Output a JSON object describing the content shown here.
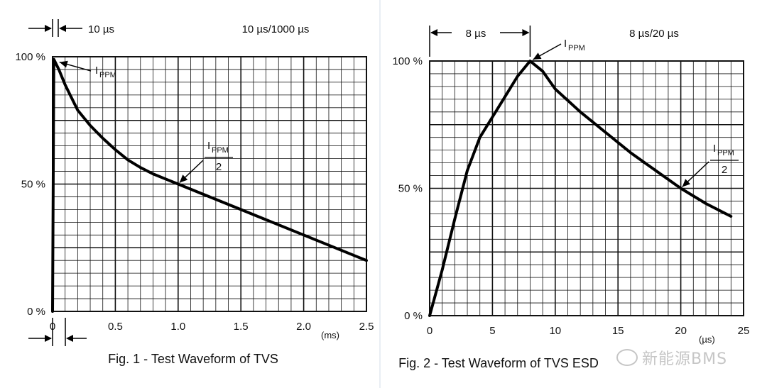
{
  "colors": {
    "grid": "#111111",
    "curve": "#000000",
    "background": "#ffffff"
  },
  "chart_data": [
    {
      "type": "line",
      "title": "Fig. 1 - Test Waveform of TVS",
      "xlabel": "(ms)",
      "ylabel": "",
      "xlim": [
        0,
        2.5
      ],
      "ylim": [
        0,
        100
      ],
      "x_ticks": [
        {
          "v": 0,
          "label": "0"
        },
        {
          "v": 0.5,
          "label": "0.5"
        },
        {
          "v": 1,
          "label": "1.0"
        },
        {
          "v": 1.5,
          "label": "1.5"
        },
        {
          "v": 2,
          "label": "2.0"
        },
        {
          "v": 2.5,
          "label": "2.5"
        }
      ],
      "y_ticks": [
        {
          "v": 0,
          "label": "0 %"
        },
        {
          "v": 50,
          "label": "50 %"
        },
        {
          "v": 100,
          "label": "100 %"
        }
      ],
      "x_minor": 0.1,
      "y_minor": 5,
      "grid": true,
      "series": [
        {
          "name": "10 µs/1000 µs waveform",
          "x": [
            0,
            0.01,
            0.05,
            0.1,
            0.15,
            0.2,
            0.3,
            0.4,
            0.5,
            0.6,
            0.7,
            0.8,
            0.9,
            1.0,
            1.2,
            1.5,
            2.0,
            2.5
          ],
          "y": [
            0,
            99,
            95,
            89,
            84,
            79,
            73,
            68,
            63.5,
            59.5,
            56.5,
            54,
            52,
            50,
            46,
            40,
            30,
            20
          ]
        }
      ],
      "annotations": {
        "rise_time": "10 µs",
        "waveform": "10 µs/1000 µs",
        "peak_label": "I",
        "peak_sub": "PPM",
        "half_num": "I",
        "half_sub": "PPM",
        "half_den": "2",
        "peak_point": [
          0.01,
          99
        ],
        "half_point": [
          1.0,
          50
        ]
      }
    },
    {
      "type": "line",
      "title": "Fig. 2 - Test Waveform of TVS ESD",
      "xlabel": "(µs)",
      "ylabel": "",
      "xlim": [
        0,
        25
      ],
      "ylim": [
        0,
        100
      ],
      "x_ticks": [
        {
          "v": 0,
          "label": "0"
        },
        {
          "v": 5,
          "label": "5"
        },
        {
          "v": 10,
          "label": "10"
        },
        {
          "v": 15,
          "label": "15"
        },
        {
          "v": 20,
          "label": "20"
        },
        {
          "v": 25,
          "label": "25"
        }
      ],
      "y_ticks": [
        {
          "v": 0,
          "label": "0 %"
        },
        {
          "v": 50,
          "label": "50 %"
        },
        {
          "v": 100,
          "label": "100 %"
        }
      ],
      "x_minor": 1,
      "y_minor": 5,
      "grid": true,
      "series": [
        {
          "name": "8 µs/20 µs waveform",
          "x": [
            0,
            1,
            2,
            3,
            4,
            5,
            6,
            7,
            8,
            9,
            10,
            12,
            14,
            16,
            18,
            20,
            22,
            24
          ],
          "y": [
            0,
            18,
            38,
            57,
            70,
            78,
            86,
            94,
            100,
            96,
            89,
            80,
            72,
            64,
            57,
            50,
            44,
            39
          ]
        }
      ],
      "annotations": {
        "rise_time": "8 µs",
        "waveform": "8 µs/20 µs",
        "peak_label": "I",
        "peak_sub": "PPM",
        "half_num": "I",
        "half_sub": "PPM",
        "half_den": "2",
        "peak_point": [
          8,
          100
        ],
        "half_point": [
          20,
          50
        ]
      }
    }
  ],
  "watermark": "新能源BMS"
}
